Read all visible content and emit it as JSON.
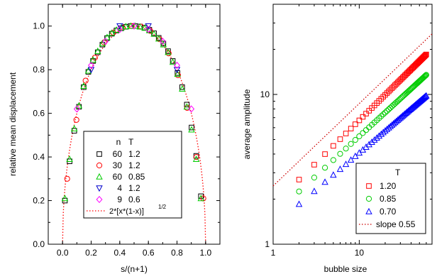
{
  "chart_data": [
    {
      "type": "scatter",
      "xlabel": "s/(n+1)",
      "ylabel": "relative mean displacement",
      "xlim": [
        -0.1,
        1.1
      ],
      "ylim": [
        0.0,
        1.1
      ],
      "xticks": [
        "0.0",
        "0.2",
        "0.4",
        "0.6",
        "0.8",
        "1.0"
      ],
      "yticks": [
        "0.0",
        "0.2",
        "0.4",
        "0.6",
        "0.8",
        "1.0"
      ],
      "grid": false,
      "legend_position": "lower-center",
      "legend_header": {
        "n": "n",
        "T": "T"
      },
      "series": [
        {
          "n": "60",
          "T": "1.2",
          "marker": "square",
          "color": "#000000",
          "points": [
            [
              0.0164,
              0.2
            ],
            [
              0.0492,
              0.38
            ],
            [
              0.082,
              0.52
            ],
            [
              0.1148,
              0.63
            ],
            [
              0.1475,
              0.72
            ],
            [
              0.1803,
              0.79
            ],
            [
              0.2131,
              0.84
            ],
            [
              0.2459,
              0.88
            ],
            [
              0.2787,
              0.915
            ],
            [
              0.3115,
              0.945
            ],
            [
              0.3443,
              0.965
            ],
            [
              0.377,
              0.98
            ],
            [
              0.4098,
              0.99
            ],
            [
              0.4426,
              0.997
            ],
            [
              0.4754,
              1.0
            ],
            [
              0.5082,
              1.0
            ],
            [
              0.541,
              0.998
            ],
            [
              0.5738,
              0.993
            ],
            [
              0.6066,
              0.983
            ],
            [
              0.6393,
              0.967
            ],
            [
              0.6721,
              0.946
            ],
            [
              0.7049,
              0.92
            ],
            [
              0.7377,
              0.885
            ],
            [
              0.7705,
              0.84
            ],
            [
              0.8033,
              0.785
            ],
            [
              0.8361,
              0.72
            ],
            [
              0.8689,
              0.64
            ],
            [
              0.9016,
              0.535
            ],
            [
              0.9344,
              0.405
            ],
            [
              0.9672,
              0.22
            ]
          ]
        },
        {
          "n": "30",
          "T": "1.2",
          "marker": "circle",
          "color": "#ff0000",
          "points": [
            [
              0.0323,
              0.3
            ],
            [
              0.0968,
              0.57
            ],
            [
              0.1613,
              0.75
            ],
            [
              0.2258,
              0.855
            ],
            [
              0.2903,
              0.925
            ],
            [
              0.3548,
              0.97
            ],
            [
              0.4194,
              0.993
            ],
            [
              0.4839,
              1.0
            ],
            [
              0.5484,
              0.997
            ],
            [
              0.6129,
              0.978
            ],
            [
              0.6774,
              0.94
            ],
            [
              0.7419,
              0.875
            ],
            [
              0.8065,
              0.775
            ],
            [
              0.871,
              0.625
            ],
            [
              0.9355,
              0.4
            ],
            [
              0.9839,
              0.21
            ]
          ]
        },
        {
          "n": "60",
          "T": "0.85",
          "marker": "triangle-up",
          "color": "#00cc00",
          "points": [
            [
              0.0164,
              0.21
            ],
            [
              0.0492,
              0.39
            ],
            [
              0.082,
              0.53
            ],
            [
              0.1148,
              0.635
            ],
            [
              0.1475,
              0.725
            ],
            [
              0.1803,
              0.795
            ],
            [
              0.2131,
              0.845
            ],
            [
              0.2459,
              0.885
            ],
            [
              0.2787,
              0.92
            ],
            [
              0.3115,
              0.948
            ],
            [
              0.3443,
              0.968
            ],
            [
              0.377,
              0.982
            ],
            [
              0.4098,
              0.992
            ],
            [
              0.4426,
              0.998
            ],
            [
              0.4754,
              1.0
            ],
            [
              0.5082,
              1.0
            ],
            [
              0.541,
              0.997
            ],
            [
              0.5738,
              0.991
            ],
            [
              0.6066,
              0.98
            ],
            [
              0.6393,
              0.964
            ],
            [
              0.6721,
              0.942
            ],
            [
              0.7049,
              0.915
            ],
            [
              0.7377,
              0.88
            ],
            [
              0.7705,
              0.835
            ],
            [
              0.8033,
              0.78
            ],
            [
              0.8361,
              0.712
            ],
            [
              0.8689,
              0.63
            ],
            [
              0.9016,
              0.525
            ],
            [
              0.9344,
              0.39
            ],
            [
              0.9672,
              0.21
            ]
          ]
        },
        {
          "n": "4",
          "T": "1.2",
          "marker": "triangle-down",
          "color": "#0000cc",
          "points": [
            [
              0.2,
              0.8
            ],
            [
              0.4,
              1.0
            ],
            [
              0.6,
              1.0
            ],
            [
              0.8,
              0.8
            ]
          ]
        },
        {
          "n": "9",
          "T": "0.6",
          "marker": "diamond",
          "color": "#ff00ff",
          "points": [
            [
              0.1,
              0.62
            ],
            [
              0.2,
              0.82
            ],
            [
              0.3,
              0.93
            ],
            [
              0.4,
              0.985
            ],
            [
              0.5,
              1.0
            ],
            [
              0.6,
              0.985
            ],
            [
              0.7,
              0.93
            ],
            [
              0.8,
              0.82
            ],
            [
              0.9,
              0.62
            ]
          ]
        }
      ],
      "curve": {
        "label_main": "2*[x*(1-x)]",
        "label_exp": "1/2",
        "color": "#ff0000",
        "style": "dotted"
      }
    },
    {
      "type": "scatter",
      "xlabel": "bubble size",
      "ylabel": "average amplitude",
      "xscale": "log",
      "yscale": "log",
      "xlim": [
        1,
        70
      ],
      "ylim": [
        1,
        40
      ],
      "xticks": [
        "1",
        "10"
      ],
      "yticks": [
        "1",
        "10"
      ],
      "grid": false,
      "legend_position": "bottom-right",
      "legend_title": "T",
      "series": [
        {
          "name": "1.20",
          "marker": "square",
          "color": "#ff0000",
          "y_at_x2": 2.7,
          "y_at_x60": 18.5
        },
        {
          "name": "0.85",
          "marker": "circle",
          "color": "#00cc00",
          "y_at_x2": 2.25,
          "y_at_x60": 13.5
        },
        {
          "name": "0.70",
          "marker": "triangle-up",
          "color": "#0000ff",
          "y_at_x2": 1.85,
          "y_at_x60": 9.8
        }
      ],
      "x_values": [
        2,
        3,
        4,
        5,
        6,
        7,
        8,
        9,
        10,
        11,
        12,
        13,
        14,
        15,
        16,
        17,
        18,
        19,
        20,
        21,
        22,
        23,
        24,
        25,
        26,
        27,
        28,
        29,
        30,
        31,
        32,
        33,
        34,
        35,
        36,
        37,
        38,
        39,
        40,
        41,
        42,
        43,
        44,
        45,
        46,
        47,
        48,
        49,
        50,
        51,
        52,
        53,
        54,
        55,
        56,
        57,
        58,
        59,
        60
      ],
      "reference_line": {
        "label": "slope 0.55",
        "color": "#cc0000",
        "style": "dotted",
        "slope": 0.55,
        "y_at_x1": 2.45
      }
    }
  ]
}
